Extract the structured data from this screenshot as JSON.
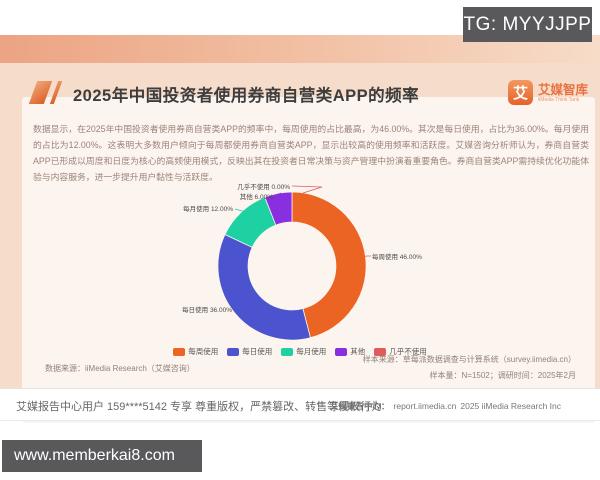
{
  "overlays": {
    "tg_badge": "TG: MYYJJPP",
    "site_badge": "www.memberkai8.com"
  },
  "header": {
    "title": "2025年中国投资者使用券商自营类APP的频率",
    "logo": {
      "icon_char": "艾",
      "name": "艾媒智库",
      "subtitle": "iiMedia Think Tank"
    }
  },
  "description": "数据显示，在2025年中国投资者使用券商自营类APP的频率中，每周使用的占比最高，为46.00%。其次是每日使用，占比为36.00%。每月使用的占比为12.00%。这表明大多数用户倾向于每周都使用券商自营类APP，显示出较高的使用频率和活跃度。艾媒咨询分析师认为，券商自营类APP已形成以周度和日度为核心的高频使用模式，反映出其在投资者日常决策与资产管理中扮演着重要角色。券商自营类APP需持续优化功能体验与内容服务，进一步提升用户黏性与活跃度。",
  "chart_data": {
    "type": "pie",
    "donut": true,
    "title": "2025年中国投资者使用券商自营类APP的频率",
    "categories": [
      "每周使用",
      "每日使用",
      "每月使用",
      "其他",
      "几乎不使用"
    ],
    "values": [
      46.0,
      36.0,
      12.0,
      6.0,
      0.0
    ],
    "labels": [
      "每周使用 46.00%",
      "每日使用 36.00%",
      "每月使用 12.00%",
      "其他 6.00%",
      "几乎不使用 0.00%"
    ],
    "colors": [
      "#EC6423",
      "#4B53CE",
      "#1ED1A3",
      "#8A2FE0",
      "#DD5A5E"
    ],
    "legend_position": "bottom"
  },
  "source": {
    "data_source": "数据来源：iiMedia Research（艾媒咨询）",
    "sample_source": "样本来源：草莓派数据调查与计算系统（survey.iimedia.cn）",
    "sample_size": "样本量：N=1502；调研时间：2025年2月"
  },
  "footer": {
    "left": "艾媒报告中心用户 159****5142 专享 尊重版权，严禁篡改、转售等侵权行为",
    "right_label": "艾媒报告中心：",
    "right_url": "report.iimedia.cn",
    "right_copyright": "2025 iiMedia Research Inc"
  }
}
